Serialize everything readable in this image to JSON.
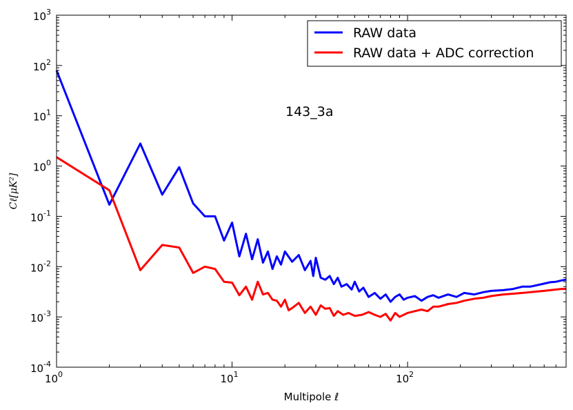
{
  "chart_data": {
    "type": "line",
    "title": "",
    "xlabel": "Multipole ℓ",
    "ylabel": "Cℓ[μK²]",
    "xscale": "log",
    "yscale": "log",
    "xlim": [
      1,
      800
    ],
    "ylim": [
      0.0001,
      1000
    ],
    "grid": false,
    "legend_position": "top-right",
    "annotation": "143_3a",
    "x_ticks": [
      {
        "value": 1,
        "base": "10",
        "exp": "0"
      },
      {
        "value": 10,
        "base": "10",
        "exp": "1"
      },
      {
        "value": 100,
        "base": "10",
        "exp": "2"
      }
    ],
    "y_ticks": [
      {
        "value": 0.0001,
        "base": "10",
        "exp": "-4"
      },
      {
        "value": 0.001,
        "base": "10",
        "exp": "-3"
      },
      {
        "value": 0.01,
        "base": "10",
        "exp": "-2"
      },
      {
        "value": 0.1,
        "base": "10",
        "exp": "-1"
      },
      {
        "value": 1,
        "base": "10",
        "exp": "0"
      },
      {
        "value": 10,
        "base": "10",
        "exp": "1"
      },
      {
        "value": 100,
        "base": "10",
        "exp": "2"
      },
      {
        "value": 1000,
        "base": "10",
        "exp": "3"
      }
    ],
    "series": [
      {
        "name": "RAW data",
        "color": "#0000ff",
        "points": [
          [
            1,
            80
          ],
          [
            2,
            0.17
          ],
          [
            3,
            2.8
          ],
          [
            4,
            0.27
          ],
          [
            5,
            0.95
          ],
          [
            6,
            0.18
          ],
          [
            7,
            0.1
          ],
          [
            8,
            0.1
          ],
          [
            9,
            0.033
          ],
          [
            10,
            0.075
          ],
          [
            11,
            0.016
          ],
          [
            12,
            0.045
          ],
          [
            13,
            0.014
          ],
          [
            14,
            0.035
          ],
          [
            15,
            0.012
          ],
          [
            16,
            0.02
          ],
          [
            17,
            0.009
          ],
          [
            18,
            0.016
          ],
          [
            19,
            0.011
          ],
          [
            20,
            0.02
          ],
          [
            22,
            0.0125
          ],
          [
            24,
            0.017
          ],
          [
            26,
            0.0085
          ],
          [
            28,
            0.013
          ],
          [
            29,
            0.0065
          ],
          [
            30,
            0.015
          ],
          [
            32,
            0.006
          ],
          [
            34,
            0.0055
          ],
          [
            36,
            0.0065
          ],
          [
            38,
            0.0045
          ],
          [
            40,
            0.006
          ],
          [
            42,
            0.004
          ],
          [
            45,
            0.0045
          ],
          [
            48,
            0.0035
          ],
          [
            50,
            0.005
          ],
          [
            53,
            0.0032
          ],
          [
            56,
            0.0038
          ],
          [
            60,
            0.0025
          ],
          [
            65,
            0.003
          ],
          [
            70,
            0.0023
          ],
          [
            75,
            0.0028
          ],
          [
            80,
            0.002
          ],
          [
            85,
            0.0025
          ],
          [
            90,
            0.0028
          ],
          [
            95,
            0.0022
          ],
          [
            100,
            0.0024
          ],
          [
            110,
            0.0026
          ],
          [
            120,
            0.0021
          ],
          [
            130,
            0.0025
          ],
          [
            140,
            0.0027
          ],
          [
            150,
            0.0024
          ],
          [
            170,
            0.0028
          ],
          [
            190,
            0.0025
          ],
          [
            210,
            0.003
          ],
          [
            240,
            0.0028
          ],
          [
            270,
            0.0031
          ],
          [
            300,
            0.0033
          ],
          [
            350,
            0.0034
          ],
          [
            400,
            0.0036
          ],
          [
            450,
            0.004
          ],
          [
            500,
            0.004
          ],
          [
            550,
            0.0043
          ],
          [
            600,
            0.0046
          ],
          [
            650,
            0.0049
          ],
          [
            700,
            0.005
          ],
          [
            750,
            0.0053
          ],
          [
            800,
            0.0055
          ]
        ]
      },
      {
        "name": "RAW data + ADC correction",
        "color": "#ff0000",
        "points": [
          [
            1,
            1.5
          ],
          [
            2,
            0.33
          ],
          [
            3,
            0.0085
          ],
          [
            4,
            0.027
          ],
          [
            5,
            0.024
          ],
          [
            6,
            0.0075
          ],
          [
            7,
            0.01
          ],
          [
            8,
            0.009
          ],
          [
            9,
            0.005
          ],
          [
            10,
            0.0048
          ],
          [
            11,
            0.0027
          ],
          [
            12,
            0.004
          ],
          [
            13,
            0.0022
          ],
          [
            14,
            0.005
          ],
          [
            15,
            0.0028
          ],
          [
            16,
            0.003
          ],
          [
            17,
            0.0022
          ],
          [
            18,
            0.0021
          ],
          [
            19,
            0.0016
          ],
          [
            20,
            0.0022
          ],
          [
            21,
            0.00135
          ],
          [
            22,
            0.0015
          ],
          [
            24,
            0.0019
          ],
          [
            26,
            0.0012
          ],
          [
            28,
            0.0016
          ],
          [
            30,
            0.0011
          ],
          [
            32,
            0.0017
          ],
          [
            34,
            0.00145
          ],
          [
            36,
            0.0015
          ],
          [
            38,
            0.00105
          ],
          [
            40,
            0.0013
          ],
          [
            43,
            0.0011
          ],
          [
            46,
            0.0012
          ],
          [
            50,
            0.00105
          ],
          [
            55,
            0.0011
          ],
          [
            60,
            0.00125
          ],
          [
            65,
            0.0011
          ],
          [
            70,
            0.001
          ],
          [
            75,
            0.00115
          ],
          [
            80,
            0.00085
          ],
          [
            85,
            0.0012
          ],
          [
            90,
            0.001
          ],
          [
            95,
            0.0011
          ],
          [
            100,
            0.0012
          ],
          [
            110,
            0.0013
          ],
          [
            120,
            0.0014
          ],
          [
            130,
            0.0013
          ],
          [
            140,
            0.0016
          ],
          [
            150,
            0.0016
          ],
          [
            170,
            0.0018
          ],
          [
            190,
            0.0019
          ],
          [
            210,
            0.0021
          ],
          [
            240,
            0.0023
          ],
          [
            270,
            0.0024
          ],
          [
            300,
            0.0026
          ],
          [
            350,
            0.0028
          ],
          [
            400,
            0.0029
          ],
          [
            450,
            0.003
          ],
          [
            500,
            0.0031
          ],
          [
            550,
            0.0032
          ],
          [
            600,
            0.0033
          ],
          [
            650,
            0.0034
          ],
          [
            700,
            0.0035
          ],
          [
            750,
            0.0036
          ],
          [
            800,
            0.0036
          ]
        ]
      }
    ]
  }
}
